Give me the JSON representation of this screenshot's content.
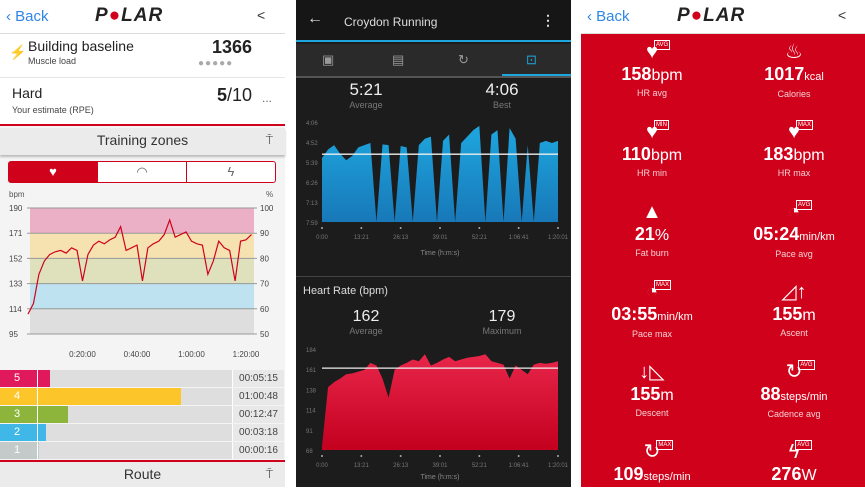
{
  "polar_left": {
    "header": {
      "back": "Back",
      "logo": "POLAR",
      "share_icon": "share-icon"
    },
    "muscle_load": {
      "title": "Building baseline",
      "subtitle": "Muscle load",
      "value": "1366",
      "dots": 5
    },
    "rpe": {
      "title": "Hard",
      "subtitle": "Your estimate (RPE)",
      "value": "5",
      "max": "/10",
      "more": "..."
    },
    "training_zones": {
      "title": "Training zones",
      "tabs": [
        "heart-icon",
        "speed-gauge-icon",
        "power-bolt-icon"
      ],
      "active_tab": 0
    },
    "zones": [
      {
        "zone": "5",
        "time": "00:05:15",
        "color": "#e0195c"
      },
      {
        "zone": "4",
        "time": "01:00:48",
        "color": "#fcc62a"
      },
      {
        "zone": "3",
        "time": "00:12:47",
        "color": "#8db53c"
      },
      {
        "zone": "2",
        "time": "00:03:18",
        "color": "#3fb8e8"
      },
      {
        "zone": "1",
        "time": "00:00:16",
        "color": "#c4c9c9"
      }
    ],
    "route": {
      "title": "Route"
    }
  },
  "garmin": {
    "title": "Croydon Running",
    "tabs": [
      "summary-icon",
      "details-icon",
      "laps-icon",
      "charts-icon"
    ],
    "active_tab": 3,
    "pace": {
      "average": "5:21",
      "average_label": "Average",
      "best": "4:06",
      "best_label": "Best"
    },
    "hr": {
      "title": "Heart Rate (bpm)",
      "average": "162",
      "average_label": "Average",
      "maximum": "179",
      "maximum_label": "Maximum"
    }
  },
  "polar_right": {
    "header": {
      "back": "Back",
      "logo": "POLAR"
    },
    "stats": [
      {
        "icon": "heart-icon",
        "badge": "AVG",
        "value": "158",
        "unit": "bpm",
        "label": "HR avg"
      },
      {
        "icon": "flame-icon",
        "badge": "",
        "value": "1017",
        "unit": "kcal",
        "label": "Calories"
      },
      {
        "icon": "heart-icon",
        "badge": "MIN",
        "value": "110",
        "unit": "bpm",
        "label": "HR min"
      },
      {
        "icon": "heart-icon",
        "badge": "MAX",
        "value": "183",
        "unit": "bpm",
        "label": "HR max"
      },
      {
        "icon": "fat-burn-icon",
        "badge": "",
        "value": "21",
        "unit": "%",
        "label": "Fat burn"
      },
      {
        "icon": "gauge-icon",
        "badge": "AVG",
        "value": "05:24",
        "unit": "min/km",
        "label": "Pace avg"
      },
      {
        "icon": "gauge-icon",
        "badge": "MAX",
        "value": "03:55",
        "unit": "min/km",
        "label": "Pace max"
      },
      {
        "icon": "ascent-icon",
        "badge": "",
        "value": "155",
        "unit": "m",
        "label": "Ascent"
      },
      {
        "icon": "descent-icon",
        "badge": "",
        "value": "155",
        "unit": "m",
        "label": "Descent"
      },
      {
        "icon": "cadence-icon",
        "badge": "AVG",
        "value": "88",
        "unit": "steps/min",
        "label": "Cadence avg"
      },
      {
        "icon": "cadence-icon",
        "badge": "MAX",
        "value": "109",
        "unit": "steps/min",
        "label": ""
      },
      {
        "icon": "power-icon",
        "badge": "AVG",
        "value": "276",
        "unit": "W",
        "label": ""
      }
    ]
  },
  "chart_data": [
    {
      "type": "line",
      "xlabel": "",
      "ylabel": "bpm",
      "y2label": "%",
      "ylim": [
        95,
        190
      ],
      "y2lim": [
        50,
        100
      ],
      "yticks": [
        "190",
        "171",
        "152",
        "133",
        "114",
        "95"
      ],
      "y2ticks": [
        "100",
        "90",
        "80",
        "70",
        "60",
        "50"
      ],
      "xticks": [
        "0:20:00",
        "0:40:00",
        "1:00:00",
        "1:20:00"
      ],
      "x_unit": "minutes",
      "zone_bands": [
        {
          "from": 95,
          "to": 114,
          "color": "#dedede"
        },
        {
          "from": 114,
          "to": 133,
          "color": "#bfe2f0"
        },
        {
          "from": 133,
          "to": 152,
          "color": "#dfe1bd"
        },
        {
          "from": 152,
          "to": 171,
          "color": "#f5e2b0"
        },
        {
          "from": 171,
          "to": 190,
          "color": "#ebb0c6"
        }
      ],
      "color": "#d0021b",
      "x": [
        0,
        2,
        4,
        6,
        8,
        10,
        12,
        14,
        16,
        18,
        20,
        22,
        24,
        26,
        28,
        30,
        32,
        34,
        36,
        38,
        40,
        42,
        44,
        46,
        48,
        50,
        52,
        54,
        56,
        58,
        60,
        62,
        64,
        66,
        68,
        70,
        72,
        74,
        76,
        78,
        80,
        82
      ],
      "y": [
        110,
        118,
        140,
        150,
        155,
        157,
        158,
        156,
        160,
        158,
        135,
        155,
        162,
        165,
        163,
        166,
        168,
        176,
        158,
        160,
        162,
        135,
        160,
        163,
        165,
        170,
        181,
        168,
        170,
        172,
        165,
        163,
        162,
        140,
        150,
        165,
        160,
        158,
        135,
        165,
        166,
        170
      ]
    },
    {
      "type": "area",
      "title": "",
      "xlabel": "Time (h:m:s)",
      "ylim": [
        "7:59",
        "4:06"
      ],
      "average_line": "5:21",
      "yticks": [
        "4:06",
        "4:52",
        "5:39",
        "6:26",
        "7:13",
        "7:59"
      ],
      "xticks": [
        "0:00",
        "13:21",
        "26:13",
        "39:01",
        "52:21",
        "1:06:41",
        "1:20:01"
      ],
      "color": "#1ea7df",
      "y": [
        "5:30",
        "5:10",
        "5:00",
        "5:20",
        "5:35",
        "5:25",
        "5:05",
        "5:00",
        "4:55",
        "7:59",
        "4:58",
        "5:00",
        "7:59",
        "5:02",
        "5:05",
        "7:59",
        "5:00",
        "4:45",
        "4:40",
        "7:59",
        "4:50",
        "4:35",
        "7:59",
        "4:55",
        "4:40",
        "4:25",
        "4:15",
        "7:59",
        "4:35",
        "4:25",
        "7:59",
        "4:20",
        "4:45",
        "7:59",
        "5:00",
        "7:59",
        "4:55",
        "4:50",
        "4:55",
        "4:50"
      ]
    },
    {
      "type": "area",
      "title": "Heart Rate (bpm)",
      "xlabel": "Time (h:m:s)",
      "ylim": [
        68,
        184
      ],
      "average_line": 162,
      "yticks": [
        "184",
        "161",
        "138",
        "114",
        "91",
        "68"
      ],
      "xticks": [
        "0:00",
        "13:21",
        "26:13",
        "39:01",
        "52:21",
        "1:06:41",
        "1:20:01"
      ],
      "color": "#e8264a",
      "y": [
        72,
        140,
        146,
        150,
        155,
        156,
        158,
        160,
        168,
        165,
        150,
        128,
        160,
        165,
        168,
        172,
        170,
        178,
        165,
        168,
        172,
        175,
        170,
        172,
        174,
        175,
        176,
        178,
        170,
        168,
        166,
        150,
        165,
        160,
        155,
        166,
        168,
        167,
        168,
        170
      ]
    }
  ]
}
